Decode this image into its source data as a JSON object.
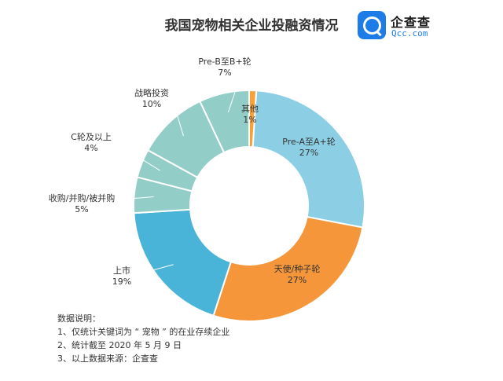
{
  "title": "我国宠物相关企业投融资情况",
  "logo": {
    "name": "企查查",
    "domain": "Qcc.com"
  },
  "chart_data": {
    "type": "pie",
    "variant": "donut",
    "title": "我国宠物相关企业投融资情况",
    "unit": "%",
    "slices": [
      {
        "name": "其他",
        "value": 1,
        "label": "1%",
        "color": "#f7a13a"
      },
      {
        "name": "Pre-A至A+轮",
        "value": 27,
        "label": "27%",
        "color": "#8ccfe5"
      },
      {
        "name": "天使/种子轮",
        "value": 27,
        "label": "27%",
        "color": "#f5963a"
      },
      {
        "name": "上市",
        "value": 19,
        "label": "19%",
        "color": "#4ab4d8"
      },
      {
        "name": "收购/并购/被并购",
        "value": 5,
        "label": "5%",
        "color": "#93cdc8"
      },
      {
        "name": "C轮及以上",
        "value": 4,
        "label": "4%",
        "color": "#93cdc8"
      },
      {
        "name": "战略投资",
        "value": 10,
        "label": "10%",
        "color": "#93cdc8"
      },
      {
        "name": "Pre-B至B+轮",
        "value": 7,
        "label": "7%",
        "color": "#93cdc8"
      }
    ]
  },
  "notes": {
    "heading": "数据说明：",
    "lines": [
      "1、仅统计关键词为 “ 宠物 ” 的在业存续企业",
      "2、统计截至 2020 年 5 月 9 日",
      "3、以上数据来源：企查查"
    ]
  }
}
